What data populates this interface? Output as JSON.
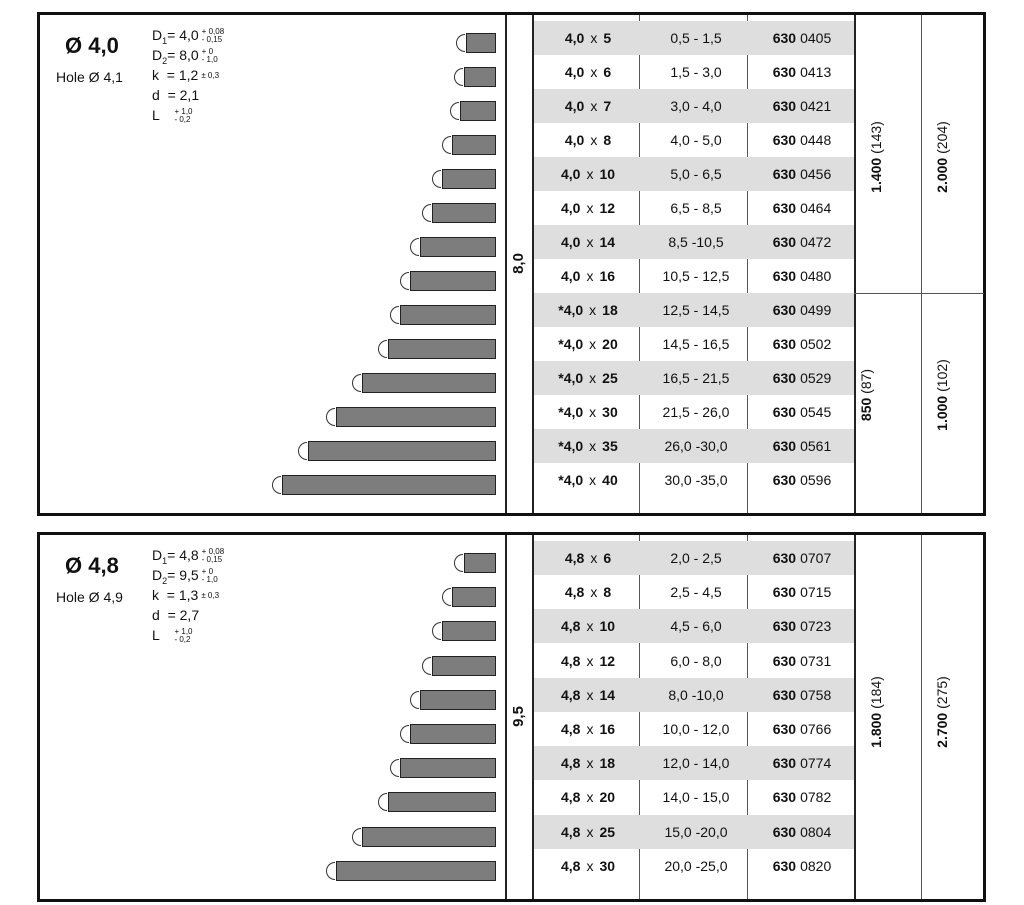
{
  "panels": [
    {
      "diameter": "Ø 4,0",
      "hole": "Hole Ø 4,1",
      "d1": {
        "label": "D",
        "sub": "1",
        "value": "= 4,0",
        "tol_plus": "+ 0,08",
        "tol_minus": "- 0,15"
      },
      "d2": {
        "label": "D",
        "sub": "2",
        "value": "= 8,0",
        "tol_plus": "+ 0",
        "tol_minus": "- 1,0"
      },
      "k": {
        "label": "k",
        "value": "= 1,2",
        "tol": "± 0,3"
      },
      "d": {
        "label": "d",
        "value": "= 2,1"
      },
      "L": {
        "label": "L",
        "tol_plus": "+ 1,0",
        "tol_minus": "- 0,2"
      },
      "d_col": "8,0",
      "rows": [
        {
          "star": "",
          "d": "4,0",
          "l": "5",
          "range": "0,5 - 1,5",
          "art_prefix": "630",
          "art_num": "0405"
        },
        {
          "star": "",
          "d": "4,0",
          "l": "6",
          "range": "1,5 - 3,0",
          "art_prefix": "630",
          "art_num": "0413"
        },
        {
          "star": "",
          "d": "4,0",
          "l": "7",
          "range": "3,0 - 4,0",
          "art_prefix": "630",
          "art_num": "0421"
        },
        {
          "star": "",
          "d": "4,0",
          "l": "8",
          "range": "4,0 - 5,0",
          "art_prefix": "630",
          "art_num": "0448"
        },
        {
          "star": "",
          "d": "4,0",
          "l": "10",
          "range": "5,0 - 6,5",
          "art_prefix": "630",
          "art_num": "0456"
        },
        {
          "star": "",
          "d": "4,0",
          "l": "12",
          "range": "6,5 - 8,5",
          "art_prefix": "630",
          "art_num": "0464"
        },
        {
          "star": "",
          "d": "4,0",
          "l": "14",
          "range": "8,5 -10,5",
          "art_prefix": "630",
          "art_num": "0472"
        },
        {
          "star": "",
          "d": "4,0",
          "l": "16",
          "range": "10,5 - 12,5",
          "art_prefix": "630",
          "art_num": "0480"
        },
        {
          "star": "*",
          "d": "4,0",
          "l": "18",
          "range": "12,5 - 14,5",
          "art_prefix": "630",
          "art_num": "0499"
        },
        {
          "star": "*",
          "d": "4,0",
          "l": "20",
          "range": "14,5 - 16,5",
          "art_prefix": "630",
          "art_num": "0502"
        },
        {
          "star": "*",
          "d": "4,0",
          "l": "25",
          "range": "16,5 - 21,5",
          "art_prefix": "630",
          "art_num": "0529"
        },
        {
          "star": "*",
          "d": "4,0",
          "l": "30",
          "range": "21,5 - 26,0",
          "art_prefix": "630",
          "art_num": "0545"
        },
        {
          "star": "*",
          "d": "4,0",
          "l": "35",
          "range": "26,0 -30,0",
          "art_prefix": "630",
          "art_num": "0561"
        },
        {
          "star": "*",
          "d": "4,0",
          "l": "40",
          "range": "30,0 -35,0",
          "art_prefix": "630",
          "art_num": "0596"
        }
      ],
      "qty_groups": [
        {
          "a_bold": "1.400",
          "a_rest": " (143)",
          "b_bold": "2.000",
          "b_rest": " (204)"
        },
        {
          "a_bold": "850",
          "a_rest": " (87)",
          "b_bold": "1.000",
          "b_rest": " (102)"
        }
      ]
    },
    {
      "diameter": "Ø 4,8",
      "hole": "Hole Ø 4,9",
      "d1": {
        "label": "D",
        "sub": "1",
        "value": "= 4,8",
        "tol_plus": "+ 0,08",
        "tol_minus": "- 0,15"
      },
      "d2": {
        "label": "D",
        "sub": "2",
        "value": "= 9,5",
        "tol_plus": "+ 0",
        "tol_minus": "- 1,0"
      },
      "k": {
        "label": "k",
        "value": "= 1,3",
        "tol": "± 0,3"
      },
      "d": {
        "label": "d",
        "value": "= 2,7"
      },
      "L": {
        "label": "L",
        "tol_plus": "+ 1,0",
        "tol_minus": "- 0,2"
      },
      "d_col": "9,5",
      "rows": [
        {
          "star": "",
          "d": "4,8",
          "l": "6",
          "range": "2,0 - 2,5",
          "art_prefix": "630",
          "art_num": "0707"
        },
        {
          "star": "",
          "d": "4,8",
          "l": "8",
          "range": "2,5 - 4,5",
          "art_prefix": "630",
          "art_num": "0715"
        },
        {
          "star": "",
          "d": "4,8",
          "l": "10",
          "range": "4,5 - 6,0",
          "art_prefix": "630",
          "art_num": "0723"
        },
        {
          "star": "",
          "d": "4,8",
          "l": "12",
          "range": "6,0 - 8,0",
          "art_prefix": "630",
          "art_num": "0731"
        },
        {
          "star": "",
          "d": "4,8",
          "l": "14",
          "range": "8,0 -10,0",
          "art_prefix": "630",
          "art_num": "0758"
        },
        {
          "star": "",
          "d": "4,8",
          "l": "16",
          "range": "10,0 - 12,0",
          "art_prefix": "630",
          "art_num": "0766"
        },
        {
          "star": "",
          "d": "4,8",
          "l": "18",
          "range": "12,0 - 14,0",
          "art_prefix": "630",
          "art_num": "0774"
        },
        {
          "star": "",
          "d": "4,8",
          "l": "20",
          "range": "14,0 - 15,0",
          "art_prefix": "630",
          "art_num": "0782"
        },
        {
          "star": "",
          "d": "4,8",
          "l": "25",
          "range": "15,0 -20,0",
          "art_prefix": "630",
          "art_num": "0804"
        },
        {
          "star": "",
          "d": "4,8",
          "l": "30",
          "range": "20,0 -25,0",
          "art_prefix": "630",
          "art_num": "0820"
        }
      ],
      "qty_groups": [
        {
          "a_bold": "1.800",
          "a_rest": " (184)",
          "b_bold": "2.700",
          "b_rest": " (275)"
        }
      ]
    }
  ],
  "symbols": {
    "times": "x"
  }
}
